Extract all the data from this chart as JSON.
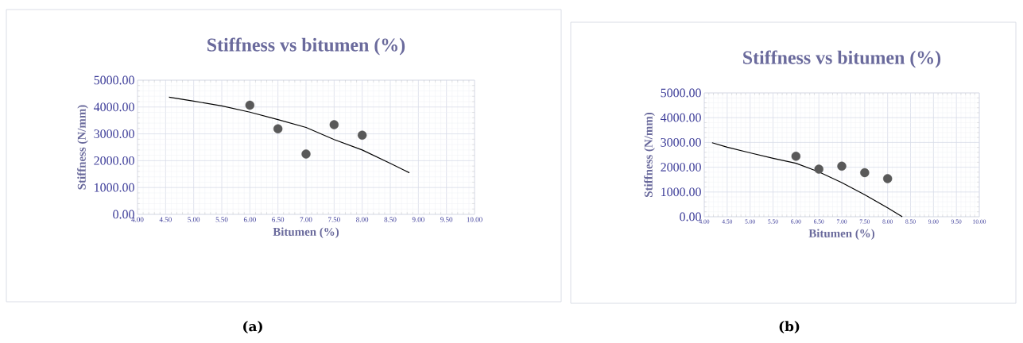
{
  "chart_data": [
    {
      "type": "scatter",
      "title": "Stiffness vs bitumen (%)",
      "xlabel": "Bitumen (%)",
      "ylabel": "Stiffness (N/mm)",
      "annotations": [
        "(a)"
      ],
      "grid": true,
      "xlim": [
        4,
        10
      ],
      "xticks": [
        {
          "value": 4,
          "label": "4.00"
        },
        {
          "value": 4.5,
          "label": "4.50"
        },
        {
          "value": 5,
          "label": "5.00"
        },
        {
          "value": 5.5,
          "label": "5.50"
        },
        {
          "value": 6,
          "label": "6.00"
        },
        {
          "value": 6.5,
          "label": "6.50"
        },
        {
          "value": 7,
          "label": "7.00"
        },
        {
          "value": 7.5,
          "label": "7.50"
        },
        {
          "value": 8,
          "label": "8.00"
        },
        {
          "value": 8.5,
          "label": "8.50"
        },
        {
          "value": 9,
          "label": "9.00"
        },
        {
          "value": 9.5,
          "label": "9.50"
        },
        {
          "value": 10,
          "label": "10.00"
        }
      ],
      "ylim": [
        0,
        5000
      ],
      "yticks": [
        {
          "value": 0,
          "label": "0.00"
        },
        {
          "value": 1000,
          "label": "1000.00"
        },
        {
          "value": 2000,
          "label": "2000.00"
        },
        {
          "value": 3000,
          "label": "3000.00"
        },
        {
          "value": 4000,
          "label": "4000.00"
        },
        {
          "value": 5000,
          "label": "5000.00"
        }
      ],
      "series": [
        {
          "type": "scatter",
          "color": "#595959",
          "marker": "circle",
          "x": [
            6.0,
            6.5,
            7.0,
            7.5,
            8.0
          ],
          "values": [
            4070,
            3190,
            2250,
            3340,
            2950
          ]
        },
        {
          "type": "line",
          "color": "#000000",
          "x": [
            4.56,
            5.0,
            5.5,
            6.0,
            6.5,
            7.0,
            7.5,
            8.0,
            8.5,
            8.84
          ],
          "values": [
            4370,
            4220,
            4040,
            3810,
            3530,
            3240,
            2790,
            2400,
            1900,
            1550
          ]
        }
      ]
    },
    {
      "type": "scatter",
      "title": "Stiffness vs bitumen (%)",
      "xlabel": "Bitumen (%)",
      "ylabel": "Stiffness (N/mm)",
      "annotations": [
        "(b)"
      ],
      "grid": true,
      "xlim": [
        4,
        10
      ],
      "xticks": [
        {
          "value": 4,
          "label": "4.00"
        },
        {
          "value": 4.5,
          "label": "4.50"
        },
        {
          "value": 5,
          "label": "5.00"
        },
        {
          "value": 5.5,
          "label": "5.50"
        },
        {
          "value": 6,
          "label": "6.00"
        },
        {
          "value": 6.5,
          "label": "6.50"
        },
        {
          "value": 7,
          "label": "7.00"
        },
        {
          "value": 7.5,
          "label": "7.50"
        },
        {
          "value": 8,
          "label": "8.00"
        },
        {
          "value": 8.5,
          "label": "8.50"
        },
        {
          "value": 9,
          "label": "9.00"
        },
        {
          "value": 9.5,
          "label": "9.50"
        },
        {
          "value": 10,
          "label": "10.00"
        }
      ],
      "ylim": [
        0,
        5000
      ],
      "yticks": [
        {
          "value": 0,
          "label": "0.00"
        },
        {
          "value": 1000,
          "label": "1000.00"
        },
        {
          "value": 2000,
          "label": "2000.00"
        },
        {
          "value": 3000,
          "label": "3000.00"
        },
        {
          "value": 4000,
          "label": "4000.00"
        },
        {
          "value": 5000,
          "label": "5000.00"
        }
      ],
      "series": [
        {
          "type": "scatter",
          "color": "#595959",
          "marker": "circle",
          "x": [
            6.0,
            6.5,
            7.0,
            7.5,
            8.0
          ],
          "values": [
            2440,
            1920,
            2040,
            1780,
            1540
          ]
        },
        {
          "type": "line",
          "color": "#000000",
          "x": [
            4.17,
            4.5,
            5.0,
            5.5,
            6.0,
            6.5,
            7.0,
            7.5,
            8.0,
            8.32
          ],
          "values": [
            2990,
            2810,
            2580,
            2360,
            2160,
            1810,
            1380,
            890,
            360,
            0
          ]
        }
      ]
    }
  ]
}
